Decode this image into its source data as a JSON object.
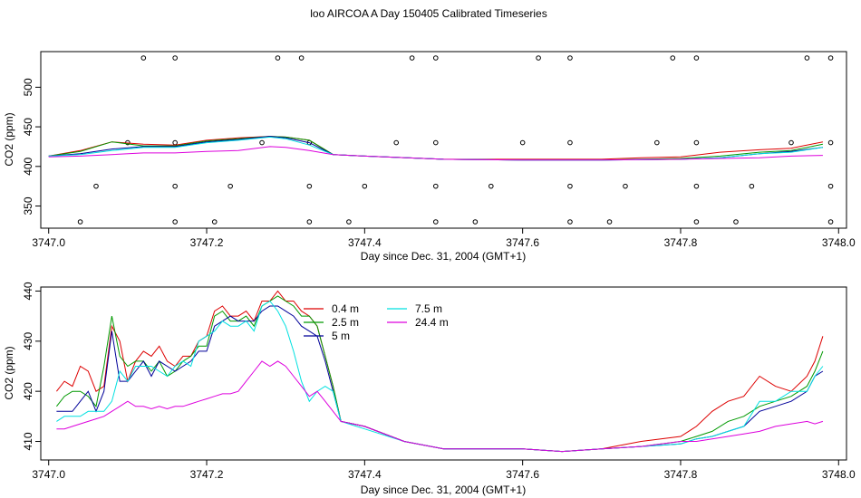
{
  "title": "loo AIRCOA A  Day 150405  Calibrated Timeseries",
  "colors": {
    "0.4 m": "#dd0000",
    "2.5 m": "#009900",
    "5 m": "#000099",
    "7.5 m": "#00e0e0",
    "24.4 m": "#dd00dd",
    "axis": "#000000"
  },
  "chart_data": [
    {
      "type": "line",
      "xlabel": "Day since Dec. 31, 2004 (GMT+1)",
      "ylabel": "CO2 (ppm)",
      "xlim": [
        3746.99,
        3748.01
      ],
      "ylim": [
        322,
        545
      ],
      "xticks": [
        "3747.0",
        "3747.2",
        "3747.4",
        "3747.6",
        "3747.8",
        "3748.0"
      ],
      "yticks": [
        "350",
        "400",
        "450",
        "500"
      ],
      "markers": {
        "style": "open-circle",
        "points": [
          [
            3747.04,
            330
          ],
          [
            3747.16,
            330
          ],
          [
            3747.21,
            330
          ],
          [
            3747.33,
            330
          ],
          [
            3747.38,
            330
          ],
          [
            3747.49,
            330
          ],
          [
            3747.54,
            330
          ],
          [
            3747.66,
            330
          ],
          [
            3747.71,
            330
          ],
          [
            3747.82,
            330
          ],
          [
            3747.87,
            330
          ],
          [
            3747.99,
            330
          ],
          [
            3747.06,
            375
          ],
          [
            3747.16,
            375
          ],
          [
            3747.23,
            375
          ],
          [
            3747.33,
            375
          ],
          [
            3747.4,
            375
          ],
          [
            3747.49,
            375
          ],
          [
            3747.56,
            375
          ],
          [
            3747.66,
            375
          ],
          [
            3747.73,
            375
          ],
          [
            3747.82,
            375
          ],
          [
            3747.89,
            375
          ],
          [
            3747.99,
            375
          ],
          [
            3747.1,
            430
          ],
          [
            3747.16,
            430
          ],
          [
            3747.27,
            430
          ],
          [
            3747.33,
            430
          ],
          [
            3747.44,
            430
          ],
          [
            3747.49,
            430
          ],
          [
            3747.6,
            430
          ],
          [
            3747.66,
            430
          ],
          [
            3747.77,
            430
          ],
          [
            3747.82,
            430
          ],
          [
            3747.94,
            430
          ],
          [
            3747.99,
            430
          ],
          [
            3747.12,
            537
          ],
          [
            3747.16,
            537
          ],
          [
            3747.29,
            537
          ],
          [
            3747.32,
            537
          ],
          [
            3747.46,
            537
          ],
          [
            3747.49,
            537
          ],
          [
            3747.62,
            537
          ],
          [
            3747.66,
            537
          ],
          [
            3747.79,
            537
          ],
          [
            3747.82,
            537
          ],
          [
            3747.96,
            537
          ],
          [
            3747.99,
            537
          ]
        ]
      },
      "series": [
        {
          "key": "0.4 m",
          "x": [
            3747.0,
            3747.04,
            3747.08,
            3747.12,
            3747.16,
            3747.2,
            3747.24,
            3747.28,
            3747.3,
            3747.33,
            3747.36,
            3747.4,
            3747.5,
            3747.6,
            3747.7,
            3747.75,
            3747.8,
            3747.85,
            3747.9,
            3747.94,
            3747.98
          ],
          "y": [
            413,
            420,
            431,
            428,
            427,
            433,
            436,
            438,
            437,
            433,
            415,
            413,
            409,
            409,
            409,
            411,
            412,
            418,
            421,
            423,
            431
          ]
        },
        {
          "key": "2.5 m",
          "x": [
            3747.0,
            3747.04,
            3747.08,
            3747.12,
            3747.16,
            3747.2,
            3747.24,
            3747.28,
            3747.3,
            3747.33,
            3747.36,
            3747.4,
            3747.5,
            3747.6,
            3747.7,
            3747.8,
            3747.85,
            3747.9,
            3747.94,
            3747.98
          ],
          "y": [
            413,
            419,
            431,
            426,
            426,
            432,
            435,
            438,
            437,
            433,
            415,
            413,
            409,
            408,
            408,
            410,
            413,
            418,
            420,
            428
          ]
        },
        {
          "key": "5 m",
          "x": [
            3747.0,
            3747.04,
            3747.08,
            3747.12,
            3747.16,
            3747.2,
            3747.24,
            3747.28,
            3747.3,
            3747.33,
            3747.36,
            3747.4,
            3747.5,
            3747.6,
            3747.7,
            3747.8,
            3747.85,
            3747.9,
            3747.94,
            3747.98
          ],
          "y": [
            413,
            416,
            422,
            425,
            425,
            431,
            434,
            438,
            436,
            430,
            415,
            413,
            409,
            408,
            408,
            409,
            411,
            416,
            419,
            424
          ]
        },
        {
          "key": "7.5 m",
          "x": [
            3747.0,
            3747.04,
            3747.08,
            3747.12,
            3747.16,
            3747.2,
            3747.24,
            3747.28,
            3747.3,
            3747.33,
            3747.36,
            3747.4,
            3747.5,
            3747.6,
            3747.7,
            3747.8,
            3747.85,
            3747.9,
            3747.94,
            3747.98
          ],
          "y": [
            413,
            415,
            420,
            424,
            424,
            430,
            433,
            437,
            435,
            427,
            415,
            413,
            409,
            408,
            408,
            409,
            411,
            416,
            418,
            424
          ]
        },
        {
          "key": "24.4 m",
          "x": [
            3747.0,
            3747.04,
            3747.08,
            3747.12,
            3747.16,
            3747.2,
            3747.24,
            3747.28,
            3747.3,
            3747.33,
            3747.36,
            3747.4,
            3747.5,
            3747.6,
            3747.7,
            3747.8,
            3747.85,
            3747.9,
            3747.94,
            3747.98
          ],
          "y": [
            412,
            413,
            415,
            417,
            417,
            419,
            420,
            425,
            424,
            420,
            415,
            413,
            409,
            408,
            408,
            409,
            410,
            411,
            413,
            414
          ]
        }
      ]
    },
    {
      "type": "line",
      "xlabel": "Day since Dec. 31, 2004 (GMT+1)",
      "ylabel": "CO2 (ppm)",
      "xlim": [
        3746.99,
        3748.01
      ],
      "ylim": [
        406.3,
        440.8
      ],
      "xticks": [
        "3747.0",
        "3747.2",
        "3747.4",
        "3747.6",
        "3747.8",
        "3748.0"
      ],
      "yticks": [
        "410",
        "420",
        "430",
        "440"
      ],
      "legend": {
        "position": "top-center",
        "entries": [
          "0.4 m",
          "2.5 m",
          "5 m",
          "7.5 m",
          "24.4 m"
        ]
      },
      "series": [
        {
          "key": "0.4 m",
          "x": [
            3747.01,
            3747.02,
            3747.03,
            3747.04,
            3747.05,
            3747.06,
            3747.07,
            3747.08,
            3747.09,
            3747.1,
            3747.11,
            3747.12,
            3747.13,
            3747.14,
            3747.15,
            3747.16,
            3747.17,
            3747.18,
            3747.19,
            3747.2,
            3747.21,
            3747.22,
            3747.23,
            3747.24,
            3747.25,
            3747.26,
            3747.27,
            3747.28,
            3747.29,
            3747.3,
            3747.31,
            3747.32,
            3747.33,
            3747.34,
            3747.35,
            3747.36,
            3747.37,
            3747.4,
            3747.45,
            3747.5,
            3747.55,
            3747.6,
            3747.65,
            3747.7,
            3747.75,
            3747.8,
            3747.82,
            3747.84,
            3747.86,
            3747.88,
            3747.9,
            3747.92,
            3747.94,
            3747.96,
            3747.97,
            3747.98
          ],
          "y": [
            420,
            422,
            421,
            425,
            424,
            420,
            421,
            433,
            430,
            422,
            426,
            428,
            427,
            429,
            426,
            425,
            427,
            427,
            430,
            431,
            436,
            437,
            435,
            435,
            436,
            434,
            438,
            438,
            440,
            438,
            438,
            436,
            435,
            433,
            427,
            421,
            414,
            413,
            410,
            408.5,
            408.5,
            408.5,
            408,
            408.5,
            410,
            411,
            413,
            416,
            418,
            419,
            423,
            421,
            420,
            423,
            426,
            431
          ]
        },
        {
          "key": "2.5 m",
          "x": [
            3747.01,
            3747.02,
            3747.03,
            3747.04,
            3747.05,
            3747.06,
            3747.07,
            3747.08,
            3747.09,
            3747.1,
            3747.11,
            3747.12,
            3747.13,
            3747.14,
            3747.15,
            3747.16,
            3747.17,
            3747.18,
            3747.19,
            3747.2,
            3747.21,
            3747.22,
            3747.23,
            3747.24,
            3747.25,
            3747.26,
            3747.27,
            3747.28,
            3747.29,
            3747.3,
            3747.31,
            3747.32,
            3747.33,
            3747.34,
            3747.35,
            3747.36,
            3747.37,
            3747.4,
            3747.45,
            3747.5,
            3747.55,
            3747.6,
            3747.65,
            3747.7,
            3747.75,
            3747.8,
            3747.82,
            3747.84,
            3747.86,
            3747.88,
            3747.9,
            3747.92,
            3747.94,
            3747.96,
            3747.97,
            3747.98
          ],
          "y": [
            417,
            419,
            420,
            420,
            419,
            417,
            425,
            435,
            427,
            425,
            426,
            426,
            424,
            426,
            423,
            424,
            426,
            427,
            429,
            429,
            435,
            436,
            434,
            434,
            435,
            433,
            437,
            438,
            439,
            438,
            437,
            435,
            435,
            433,
            427,
            421,
            414,
            413,
            410,
            408.5,
            408.5,
            408.5,
            408,
            408.5,
            409,
            410,
            411,
            412,
            414,
            415,
            417,
            418,
            419,
            421,
            424,
            428
          ]
        },
        {
          "key": "5 m",
          "x": [
            3747.01,
            3747.02,
            3747.03,
            3747.04,
            3747.05,
            3747.06,
            3747.07,
            3747.08,
            3747.09,
            3747.1,
            3747.11,
            3747.12,
            3747.13,
            3747.14,
            3747.15,
            3747.16,
            3747.17,
            3747.18,
            3747.19,
            3747.2,
            3747.21,
            3747.22,
            3747.23,
            3747.24,
            3747.25,
            3747.26,
            3747.27,
            3747.28,
            3747.29,
            3747.3,
            3747.31,
            3747.32,
            3747.33,
            3747.34,
            3747.35,
            3747.36,
            3747.37,
            3747.4,
            3747.45,
            3747.5,
            3747.55,
            3747.6,
            3747.65,
            3747.7,
            3747.75,
            3747.8,
            3747.82,
            3747.84,
            3747.86,
            3747.88,
            3747.9,
            3747.92,
            3747.94,
            3747.96,
            3747.97,
            3747.98
          ],
          "y": [
            416,
            416,
            416,
            418,
            420,
            416,
            420,
            432,
            422,
            422,
            424,
            426,
            423,
            426,
            425,
            424,
            425,
            426,
            428,
            428,
            433,
            434,
            435,
            434,
            434,
            434,
            436,
            437,
            437,
            436,
            435,
            433,
            432,
            431,
            426,
            420,
            414,
            413,
            410,
            408.5,
            408.5,
            408.5,
            408,
            408.5,
            409,
            409.5,
            410.5,
            411,
            412,
            413,
            416,
            417,
            418,
            420,
            423,
            424
          ]
        },
        {
          "key": "7.5 m",
          "x": [
            3747.01,
            3747.02,
            3747.03,
            3747.04,
            3747.05,
            3747.06,
            3747.07,
            3747.08,
            3747.09,
            3747.1,
            3747.11,
            3747.12,
            3747.13,
            3747.14,
            3747.15,
            3747.16,
            3747.17,
            3747.18,
            3747.19,
            3747.2,
            3747.21,
            3747.22,
            3747.23,
            3747.24,
            3747.25,
            3747.26,
            3747.27,
            3747.28,
            3747.29,
            3747.3,
            3747.31,
            3747.32,
            3747.33,
            3747.34,
            3747.35,
            3747.36,
            3747.37,
            3747.4,
            3747.45,
            3747.5,
            3747.55,
            3747.6,
            3747.65,
            3747.7,
            3747.75,
            3747.8,
            3747.82,
            3747.84,
            3747.86,
            3747.88,
            3747.9,
            3747.92,
            3747.94,
            3747.96,
            3747.97,
            3747.98
          ],
          "y": [
            414,
            415,
            415,
            415,
            416,
            416,
            416,
            418,
            424,
            422,
            425,
            425,
            425,
            424,
            423,
            425,
            426,
            425,
            430,
            431,
            432,
            434,
            433,
            433,
            434,
            432,
            437,
            438,
            436,
            433,
            428,
            422,
            418,
            420,
            421,
            420,
            414,
            412.5,
            410,
            408.5,
            408.5,
            408.5,
            408,
            408.5,
            409,
            409.5,
            410.5,
            411,
            412,
            413,
            418,
            418,
            420,
            420,
            423,
            425
          ]
        },
        {
          "key": "24.4 m",
          "x": [
            3747.01,
            3747.02,
            3747.03,
            3747.04,
            3747.05,
            3747.06,
            3747.07,
            3747.08,
            3747.09,
            3747.1,
            3747.11,
            3747.12,
            3747.13,
            3747.14,
            3747.15,
            3747.16,
            3747.17,
            3747.18,
            3747.19,
            3747.2,
            3747.21,
            3747.22,
            3747.23,
            3747.24,
            3747.25,
            3747.26,
            3747.27,
            3747.28,
            3747.29,
            3747.3,
            3747.31,
            3747.32,
            3747.33,
            3747.34,
            3747.35,
            3747.36,
            3747.37,
            3747.4,
            3747.45,
            3747.5,
            3747.55,
            3747.6,
            3747.65,
            3747.7,
            3747.75,
            3747.8,
            3747.82,
            3747.84,
            3747.86,
            3747.88,
            3747.9,
            3747.92,
            3747.94,
            3747.96,
            3747.97,
            3747.98
          ],
          "y": [
            412.5,
            412.5,
            413,
            413.5,
            414,
            414.5,
            415,
            416,
            417,
            418,
            417,
            417,
            416.5,
            417,
            416.5,
            417,
            417,
            417.5,
            418,
            418.5,
            419,
            419.5,
            419.5,
            420,
            422,
            424,
            426,
            425,
            426,
            425,
            423,
            421,
            419,
            420,
            418,
            416,
            414,
            413,
            410,
            408.5,
            408.5,
            408.5,
            408,
            408.5,
            409,
            410,
            410,
            410.5,
            411,
            411.5,
            412,
            413,
            413.5,
            414,
            413.5,
            414
          ]
        }
      ]
    }
  ]
}
